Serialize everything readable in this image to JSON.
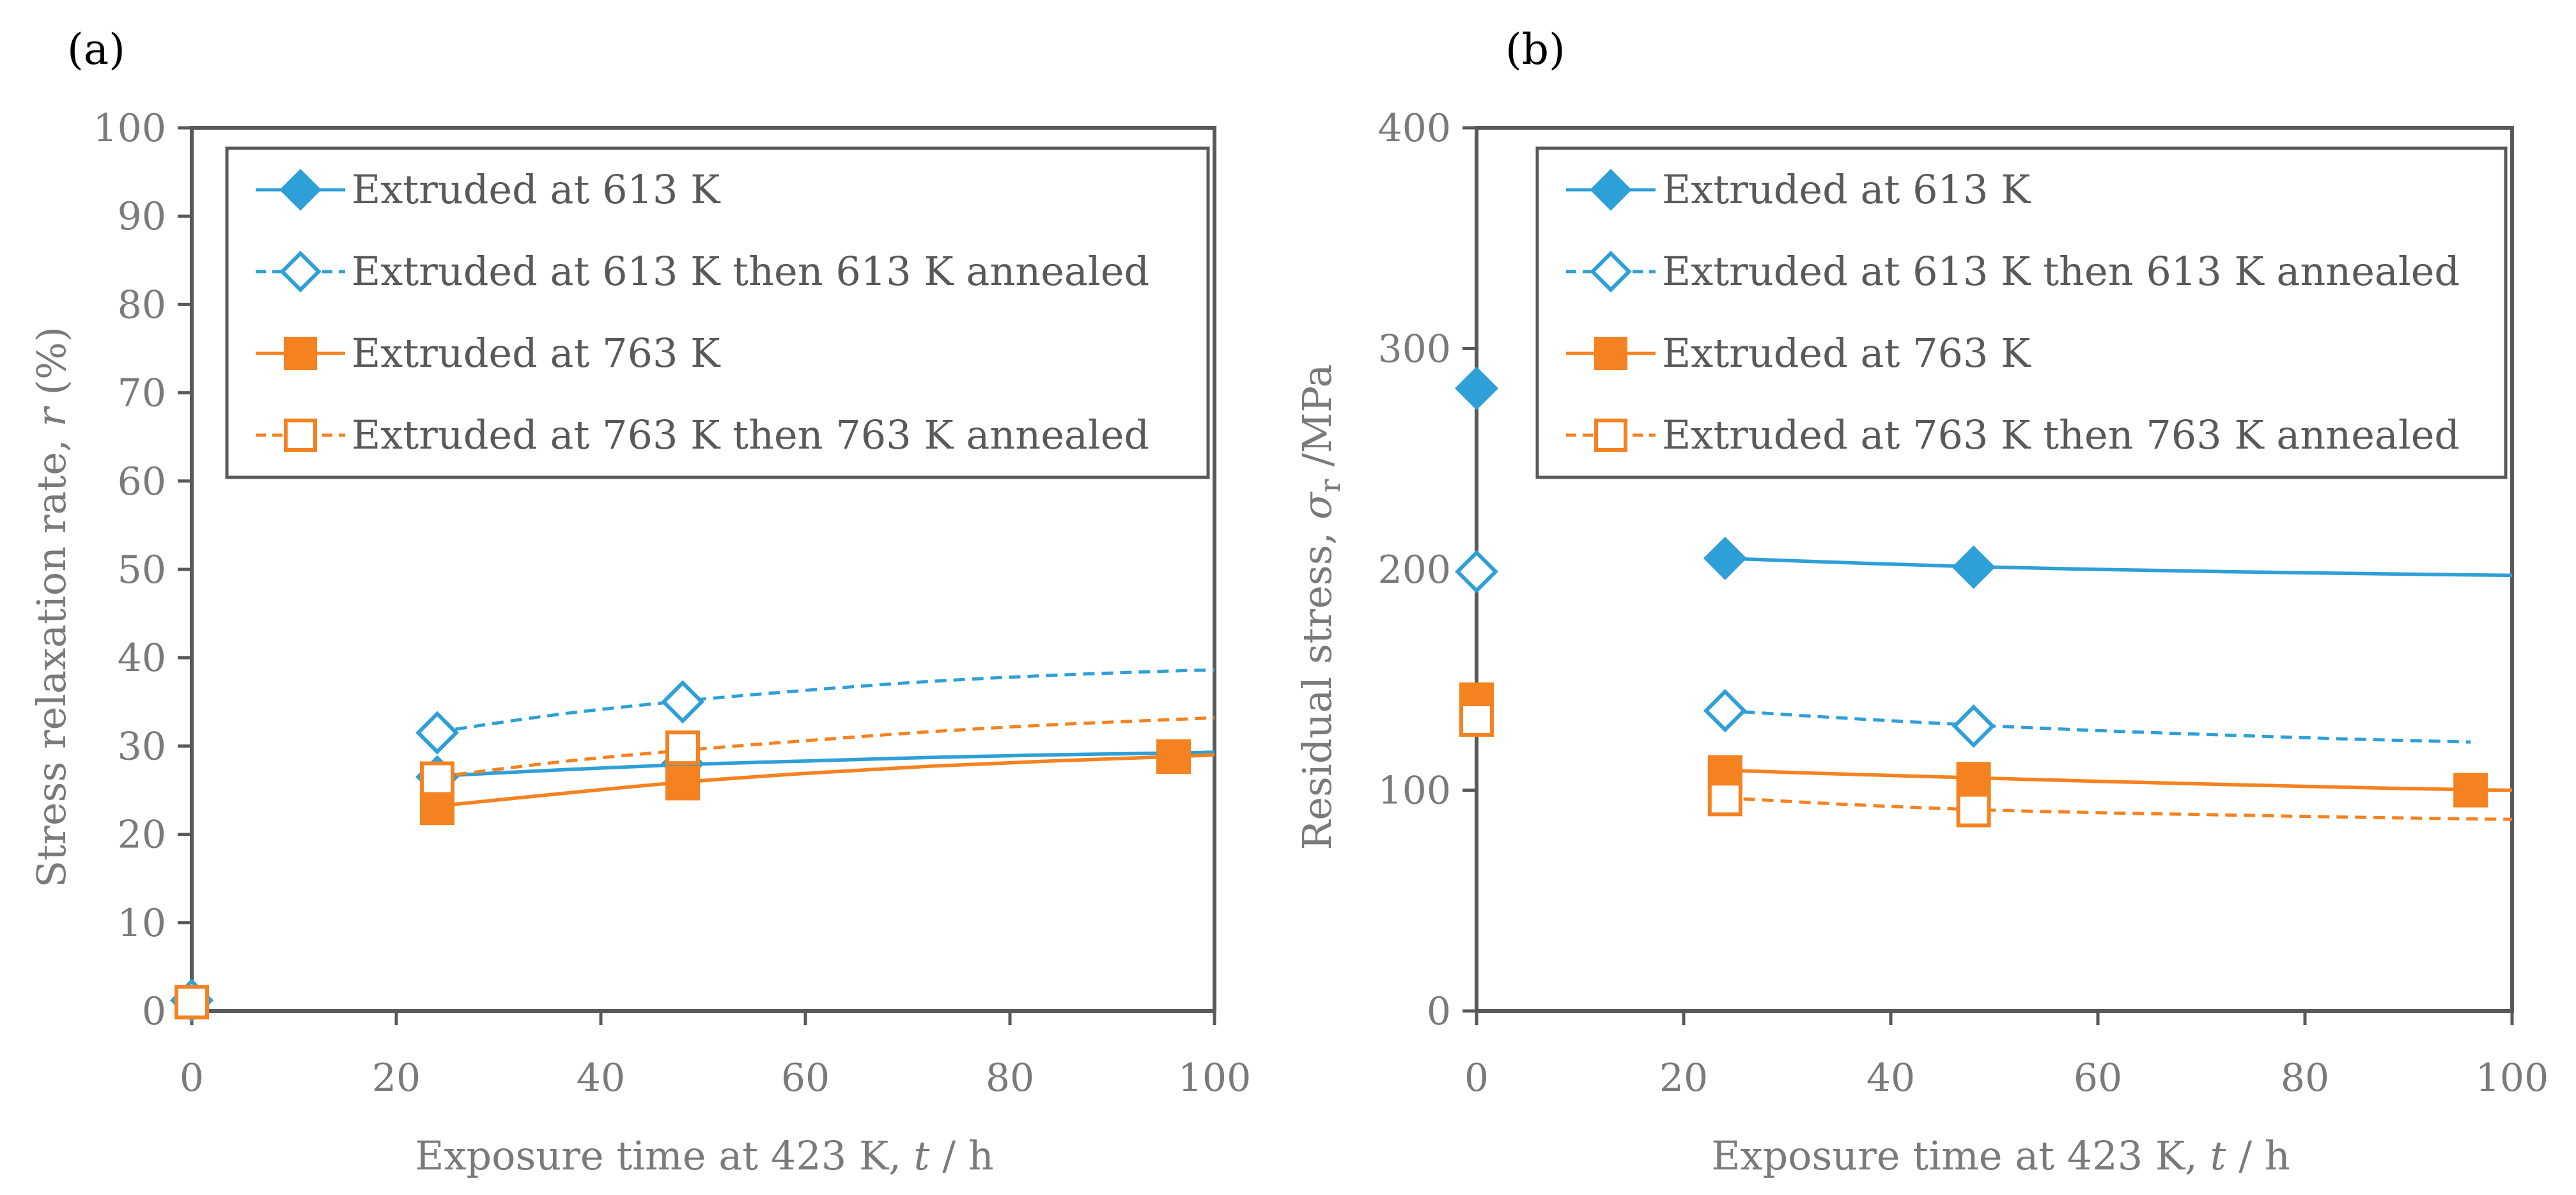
{
  "colors": {
    "blue": "#2f9fd8",
    "orange": "#f58220",
    "axis": "#595959",
    "text": "#7a7a7a"
  },
  "chart_data": [
    {
      "panel_label": "(a)",
      "type": "line",
      "title": "",
      "xlabel_prefix": "Exposure time at 423 K, ",
      "xlabel_var": "t",
      "xlabel_unit": " / h",
      "ylabel_prefix": "Stress relaxation rate, ",
      "ylabel_var": "r",
      "ylabel_unit": " (%)",
      "xlim": [
        0,
        100
      ],
      "ylim": [
        0,
        100
      ],
      "xticks": [
        "0",
        "20",
        "40",
        "60",
        "80",
        "100"
      ],
      "yticks": [
        "0",
        "10",
        "20",
        "30",
        "40",
        "50",
        "60",
        "70",
        "80",
        "90",
        "100"
      ],
      "grid": false,
      "legend_position": "top-right",
      "series": [
        {
          "name": "Extruded at 613 K",
          "color": "#2f9fd8",
          "marker": "diamond",
          "filled": true,
          "dashed": false,
          "points": [
            [
              0,
              1.2
            ],
            [
              24,
              26.5
            ],
            [
              48,
              28
            ]
          ],
          "fit": [
            [
              24,
              26.6
            ],
            [
              36,
              27.3
            ],
            [
              48,
              27.9
            ],
            [
              60,
              28.3
            ],
            [
              72,
              28.7
            ],
            [
              84,
              29
            ],
            [
              96,
              29.2
            ],
            [
              100,
              29.3
            ]
          ]
        },
        {
          "name": "Extruded at 613 K then 613 K annealed",
          "color": "#2f9fd8",
          "marker": "diamond",
          "filled": false,
          "dashed": true,
          "points": [
            [
              0,
              1.2
            ],
            [
              24,
              31.5
            ],
            [
              48,
              35
            ]
          ],
          "fit": [
            [
              24,
              31.6
            ],
            [
              36,
              33.6
            ],
            [
              48,
              35.1
            ],
            [
              60,
              36.3
            ],
            [
              72,
              37.3
            ],
            [
              84,
              38
            ],
            [
              96,
              38.5
            ],
            [
              100,
              38.6
            ]
          ]
        },
        {
          "name": "Extruded at 763 K",
          "color": "#f58220",
          "marker": "square",
          "filled": true,
          "dashed": false,
          "points": [
            [
              0,
              1
            ],
            [
              24,
              23
            ],
            [
              48,
              25.8
            ],
            [
              96,
              28.8
            ]
          ],
          "fit": [
            [
              24,
              23.2
            ],
            [
              36,
              24.6
            ],
            [
              48,
              25.9
            ],
            [
              60,
              26.9
            ],
            [
              72,
              27.7
            ],
            [
              84,
              28.3
            ],
            [
              96,
              28.8
            ],
            [
              100,
              29
            ]
          ]
        },
        {
          "name": "Extruded at 763 K then 763 K annealed",
          "color": "#f58220",
          "marker": "square",
          "filled": false,
          "dashed": true,
          "points": [
            [
              0,
              1
            ],
            [
              24,
              26.3
            ],
            [
              48,
              29.8
            ]
          ],
          "fit": [
            [
              24,
              26.5
            ],
            [
              36,
              28.2
            ],
            [
              48,
              29.5
            ],
            [
              60,
              30.6
            ],
            [
              72,
              31.6
            ],
            [
              84,
              32.4
            ],
            [
              96,
              33
            ],
            [
              100,
              33.2
            ]
          ]
        }
      ]
    },
    {
      "panel_label": "(b)",
      "type": "line",
      "title": "",
      "xlabel_prefix": "Exposure time at 423 K, ",
      "xlabel_var": "t",
      "xlabel_unit": " / h",
      "ylabel_prefix": "Residual stress, ",
      "ylabel_var": "σ",
      "ylabel_sub": "r",
      "ylabel_unit": " /MPa",
      "xlim": [
        0,
        100
      ],
      "ylim": [
        0,
        400
      ],
      "xticks": [
        "0",
        "20",
        "40",
        "60",
        "80",
        "100"
      ],
      "yticks": [
        "0",
        "100",
        "200",
        "300",
        "400"
      ],
      "grid": false,
      "legend_position": "top-right",
      "series": [
        {
          "name": "Extruded at 613 K",
          "color": "#2f9fd8",
          "marker": "diamond",
          "filled": true,
          "dashed": false,
          "points": [
            [
              0,
              282
            ],
            [
              24,
              205
            ],
            [
              48,
              201
            ]
          ],
          "fit": [
            [
              24,
              205
            ],
            [
              36,
              203
            ],
            [
              48,
              201.2
            ],
            [
              60,
              200
            ],
            [
              72,
              199
            ],
            [
              84,
              198.2
            ],
            [
              96,
              197.5
            ],
            [
              100,
              197.3
            ]
          ]
        },
        {
          "name": "Extruded at 613 K then 613 K annealed",
          "color": "#2f9fd8",
          "marker": "diamond",
          "filled": false,
          "dashed": true,
          "points": [
            [
              0,
              199
            ],
            [
              24,
              136
            ],
            [
              48,
              129
            ]
          ],
          "fit": [
            [
              24,
              136
            ],
            [
              36,
              132.5
            ],
            [
              48,
              129.5
            ],
            [
              60,
              127
            ],
            [
              72,
              125
            ],
            [
              84,
              123.2
            ],
            [
              96,
              121.8
            ]
          ]
        },
        {
          "name": "Extruded at 763 K",
          "color": "#f58220",
          "marker": "square",
          "filled": true,
          "dashed": false,
          "points": [
            [
              0,
              141
            ],
            [
              24,
              108
            ],
            [
              48,
              105
            ],
            [
              96,
              100
            ]
          ],
          "fit": [
            [
              24,
              109
            ],
            [
              36,
              107.2
            ],
            [
              48,
              105.6
            ],
            [
              60,
              104
            ],
            [
              72,
              102.6
            ],
            [
              84,
              101.3
            ],
            [
              96,
              100.2
            ],
            [
              100,
              100
            ]
          ]
        },
        {
          "name": "Extruded at 763 K then 763 K annealed",
          "color": "#f58220",
          "marker": "square",
          "filled": false,
          "dashed": true,
          "points": [
            [
              0,
              132
            ],
            [
              24,
              96
            ],
            [
              48,
              91
            ]
          ],
          "fit": [
            [
              24,
              96.5
            ],
            [
              36,
              93.5
            ],
            [
              48,
              91.2
            ],
            [
              60,
              89.8
            ],
            [
              72,
              88.8
            ],
            [
              84,
              87.8
            ],
            [
              96,
              87
            ],
            [
              100,
              86.8
            ]
          ]
        }
      ]
    }
  ]
}
